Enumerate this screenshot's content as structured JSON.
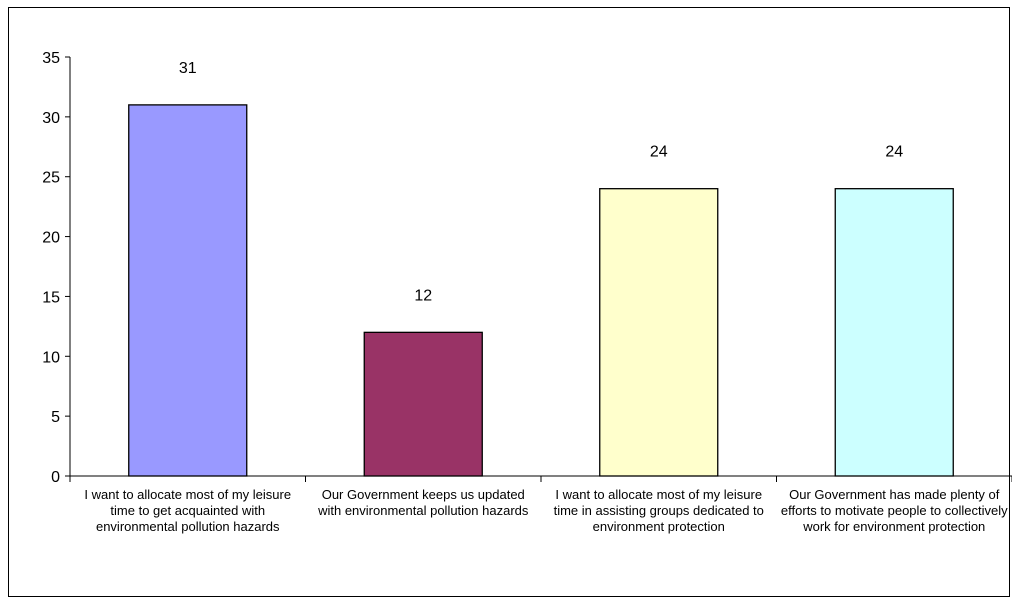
{
  "chart_data": {
    "type": "bar",
    "categories": [
      "I want to allocate most of my leisure time to get acquainted with environmental pollution hazards",
      "Our Government keeps us updated with environmental pollution hazards",
      "I want to allocate most of my leisure time in assisting groups dedicated to environment protection",
      "Our Government has made plenty of efforts to motivate people to collectively work for environment protection"
    ],
    "values": [
      31,
      12,
      24,
      24
    ],
    "data_labels": [
      "31",
      "12",
      "24",
      "24"
    ],
    "colors": [
      "#9999ff",
      "#993366",
      "#ffffcc",
      "#ccffff"
    ],
    "yticks": [
      "0",
      "5",
      "10",
      "15",
      "20",
      "25",
      "30",
      "35"
    ],
    "ylim": [
      0,
      35
    ],
    "title": "",
    "xlabel": "",
    "ylabel": "",
    "grid": false,
    "legend": "none"
  }
}
